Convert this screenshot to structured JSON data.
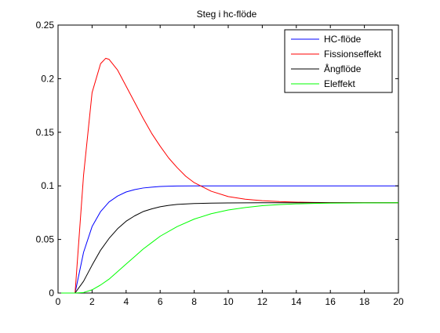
{
  "chart_data": {
    "type": "line",
    "title": "Steg i hc-flöde",
    "xlabel": "",
    "ylabel": "",
    "xlim": [
      0,
      20
    ],
    "ylim": [
      0,
      0.25
    ],
    "xticks": [
      0,
      2,
      4,
      6,
      8,
      10,
      12,
      14,
      16,
      18,
      20
    ],
    "yticks": [
      0,
      0.05,
      0.1,
      0.15,
      0.2,
      0.25
    ],
    "xtick_labels": [
      "0",
      "2",
      "4",
      "6",
      "8",
      "10",
      "12",
      "14",
      "16",
      "18",
      "20"
    ],
    "ytick_labels": [
      "0",
      "0.05",
      "0.1",
      "0.15",
      "0.2",
      "0.25"
    ],
    "grid": false,
    "legend_position": "top-right",
    "series": [
      {
        "name": "HC-flöde",
        "color": "#0000ff",
        "x": [
          0,
          1,
          1.5,
          2,
          2.5,
          3,
          3.5,
          4,
          4.5,
          5,
          5.5,
          6,
          6.5,
          7,
          8,
          10,
          12,
          14,
          16,
          18,
          20
        ],
        "y": [
          0,
          0,
          0.038,
          0.062,
          0.076,
          0.085,
          0.0905,
          0.0943,
          0.0965,
          0.098,
          0.0988,
          0.0994,
          0.0997,
          0.0999,
          0.1,
          0.1,
          0.1,
          0.1,
          0.1,
          0.1,
          0.1
        ]
      },
      {
        "name": "Fissionseffekt",
        "color": "#ff0000",
        "x": [
          0,
          1,
          1.5,
          2,
          2.5,
          2.8,
          3,
          3.5,
          4,
          4.5,
          5,
          5.5,
          6,
          6.5,
          7,
          7.5,
          8,
          9,
          10,
          11,
          12,
          13,
          14,
          15,
          16,
          18,
          20
        ],
        "y": [
          0,
          0,
          0.11,
          0.187,
          0.214,
          0.219,
          0.218,
          0.208,
          0.193,
          0.178,
          0.163,
          0.149,
          0.137,
          0.126,
          0.117,
          0.109,
          0.103,
          0.095,
          0.09,
          0.0875,
          0.0862,
          0.0853,
          0.0848,
          0.0845,
          0.0843,
          0.0842,
          0.0842
        ]
      },
      {
        "name": "Ångflöde",
        "color": "#000000",
        "x": [
          0,
          1,
          1.5,
          2,
          2.5,
          3,
          3.5,
          4,
          4.5,
          5,
          5.5,
          6,
          6.5,
          7,
          8,
          9,
          10,
          12,
          14,
          16,
          18,
          20
        ],
        "y": [
          0,
          0,
          0.011,
          0.026,
          0.04,
          0.051,
          0.06,
          0.067,
          0.072,
          0.076,
          0.0785,
          0.0805,
          0.0818,
          0.0827,
          0.0835,
          0.0839,
          0.0841,
          0.0842,
          0.0842,
          0.0842,
          0.0842,
          0.0842
        ]
      },
      {
        "name": "Eleffekt",
        "color": "#00ff00",
        "x": [
          0,
          1,
          1.5,
          2,
          2.5,
          3,
          3.5,
          4,
          4.5,
          5,
          5.5,
          6,
          7,
          8,
          9,
          10,
          11,
          12,
          13,
          14,
          15,
          16,
          18,
          20
        ],
        "y": [
          0,
          0,
          0.0005,
          0.003,
          0.0075,
          0.013,
          0.02,
          0.027,
          0.034,
          0.041,
          0.047,
          0.053,
          0.062,
          0.069,
          0.074,
          0.0775,
          0.0798,
          0.0815,
          0.0825,
          0.0832,
          0.0836,
          0.0839,
          0.0841,
          0.0842
        ]
      }
    ]
  }
}
